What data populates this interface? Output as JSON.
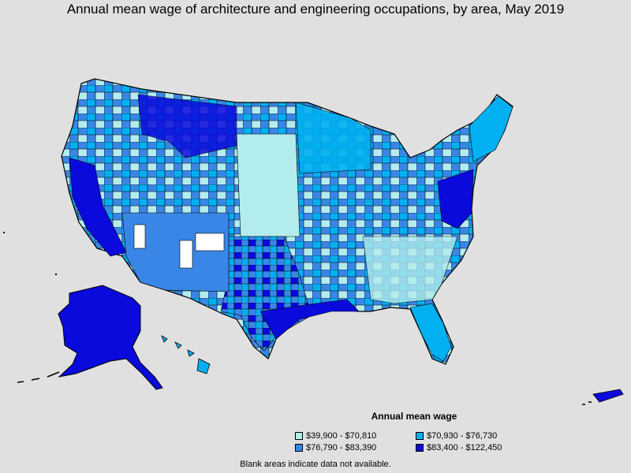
{
  "title": "Annual mean wage of architecture and engineering occupations, by area, May 2019",
  "legend": {
    "title": "Annual mean wage",
    "items": [
      {
        "label": "$39,900 - $70,810",
        "color": "#b3ecec"
      },
      {
        "label": "$70,930 - $76,730",
        "color": "#00b0f0"
      },
      {
        "label": "$76,790 - $83,390",
        "color": "#3a86e6"
      },
      {
        "label": "$83,400 - $122,450",
        "color": "#0a0adc"
      }
    ]
  },
  "footnote": "Blank areas indicate data not available.",
  "colors": {
    "background": "#e0e0e0",
    "border": "#000000",
    "no_data": "#ffffff"
  }
}
